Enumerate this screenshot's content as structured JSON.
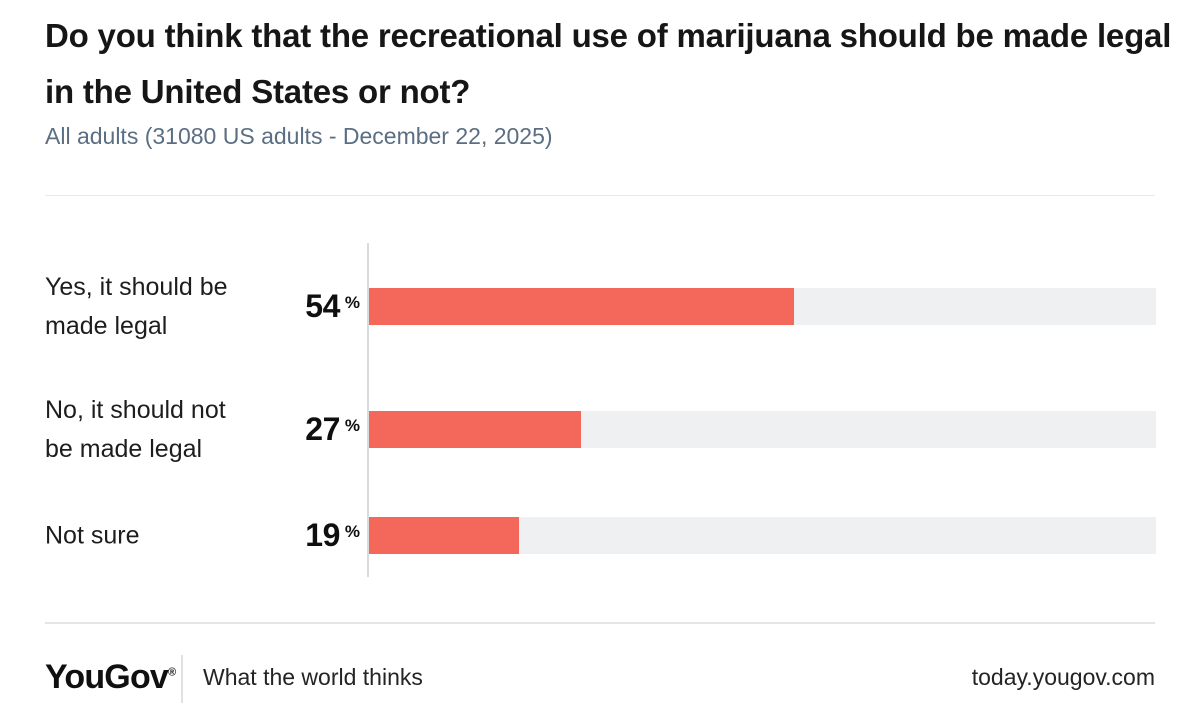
{
  "header": {
    "title": "Do you think that the recreational use of marijuana should be made legal in the United States or not?",
    "subtitle": "All adults (31080 US adults - December 22, 2025)"
  },
  "chart_data": {
    "type": "bar",
    "orientation": "horizontal",
    "title": "Do you think that the recreational use of marijuana should be made legal in the United States or not?",
    "subtitle": "All adults (31080 US adults - December 22, 2025)",
    "categories": [
      "Yes, it should be\nmade legal",
      "No, it should not\nbe made legal",
      "Not sure"
    ],
    "values": [
      54,
      27,
      19
    ],
    "unit": "%",
    "xlim": [
      0,
      100
    ],
    "grid": false,
    "legend": false,
    "bar_color": "#f4685c",
    "track_color": "#eef0f2"
  },
  "footer": {
    "logo": "YouGov",
    "registered_mark": "®",
    "tagline": "What the world thinks",
    "site": "today.yougov.com"
  }
}
